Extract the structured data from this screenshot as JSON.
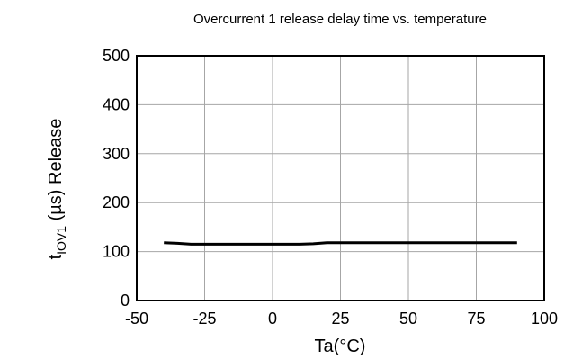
{
  "chart_data": {
    "type": "line",
    "title": "Overcurrent 1 release delay time vs. temperature",
    "xlabel": "Ta(°C)",
    "ylabel": {
      "main": "t",
      "subscript": "IOV1",
      "rest": " (µs) Release"
    },
    "xlim": [
      -50,
      100
    ],
    "ylim": [
      0,
      500
    ],
    "xticks": [
      -50,
      -25,
      0,
      25,
      50,
      75,
      100
    ],
    "yticks": [
      0,
      100,
      200,
      300,
      400,
      500
    ],
    "grid": true,
    "legend": "none",
    "series": [
      {
        "color": "#000000",
        "x": [
          -40,
          -35,
          -30,
          -25,
          -10,
          0,
          10,
          15,
          20,
          30,
          50,
          70,
          90
        ],
        "y": [
          118,
          117,
          115,
          115,
          115,
          115,
          115,
          116,
          118,
          118,
          118,
          118,
          118
        ]
      }
    ]
  }
}
